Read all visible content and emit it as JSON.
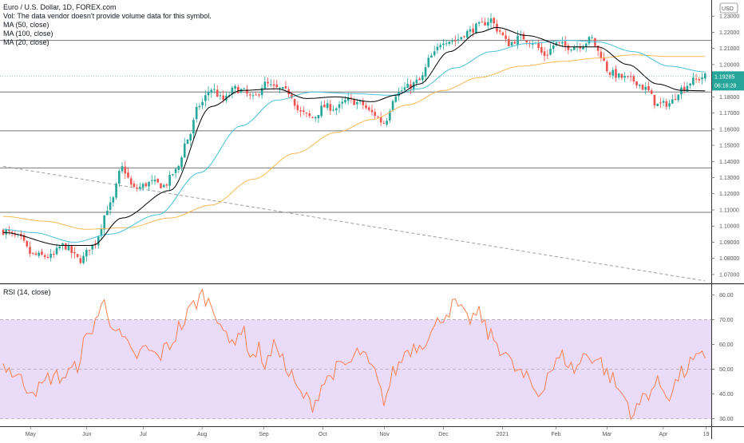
{
  "header": {
    "symbol_line": "Euro / U.S. Dollar, 1D, FOREX.com",
    "volume_note": "Vol: The data vendor doesn't provide volume data for this symbol.",
    "ma50": "MA (50, close)",
    "ma100": "MA (100, close)",
    "ma20": "MA (20, close)"
  },
  "rsi_legend": "RSI (14, close)",
  "currency": "USD",
  "last_price_label": "1.19285",
  "countdown_label": "06:16:28",
  "colors": {
    "up": "#26a69a",
    "down": "#ef5350",
    "ma20": "#000000",
    "ma50": "#4bc0d9",
    "ma100": "#f7b955",
    "rsi": "#ff7f50",
    "rsi_band": "#eadcf9",
    "rsi_bounds": "#9e9e9e",
    "hlines": "#777777",
    "trendline": "#9e9e9e",
    "price_tag": "#26a69a"
  },
  "chart_data": [
    {
      "type": "candlestick",
      "title": "Euro / U.S. Dollar, 1D, FOREX.com",
      "y_ticks": [
        "1.23000",
        "1.22000",
        "1.21000",
        "1.20000",
        "1.19000",
        "1.18000",
        "1.17000",
        "1.16000",
        "1.15000",
        "1.14000",
        "1.13000",
        "1.12000",
        "1.11000",
        "1.10000",
        "1.09000",
        "1.08000",
        "1.07000"
      ],
      "ylim": [
        1.065,
        1.24
      ],
      "x_labels": [
        "May",
        "Jun",
        "Jul",
        "Aug",
        "Sep",
        "Oct",
        "Nov",
        "Dec",
        "2021",
        "Feb",
        "Mar",
        "Apr",
        "19"
      ],
      "close_anchors": [
        [
          0,
          1.097
        ],
        [
          5,
          1.093
        ],
        [
          10,
          1.082
        ],
        [
          16,
          1.081
        ],
        [
          20,
          1.088
        ],
        [
          26,
          1.079
        ],
        [
          30,
          1.088
        ],
        [
          36,
          1.113
        ],
        [
          40,
          1.136
        ],
        [
          44,
          1.123
        ],
        [
          50,
          1.127
        ],
        [
          54,
          1.125
        ],
        [
          58,
          1.134
        ],
        [
          62,
          1.154
        ],
        [
          66,
          1.175
        ],
        [
          70,
          1.185
        ],
        [
          74,
          1.178
        ],
        [
          78,
          1.185
        ],
        [
          80,
          1.184
        ],
        [
          84,
          1.179
        ],
        [
          88,
          1.188
        ],
        [
          92,
          1.185
        ],
        [
          96,
          1.183
        ],
        [
          100,
          1.17
        ],
        [
          104,
          1.167
        ],
        [
          108,
          1.174
        ],
        [
          112,
          1.173
        ],
        [
          116,
          1.178
        ],
        [
          120,
          1.176
        ],
        [
          124,
          1.17
        ],
        [
          128,
          1.164
        ],
        [
          132,
          1.182
        ],
        [
          136,
          1.186
        ],
        [
          140,
          1.19
        ],
        [
          144,
          1.205
        ],
        [
          148,
          1.215
        ],
        [
          152,
          1.215
        ],
        [
          156,
          1.22
        ],
        [
          160,
          1.224
        ],
        [
          164,
          1.228
        ],
        [
          166,
          1.222
        ],
        [
          170,
          1.213
        ],
        [
          174,
          1.217
        ],
        [
          178,
          1.214
        ],
        [
          182,
          1.206
        ],
        [
          186,
          1.213
        ],
        [
          190,
          1.211
        ],
        [
          194,
          1.212
        ],
        [
          198,
          1.216
        ],
        [
          200,
          1.208
        ],
        [
          204,
          1.195
        ],
        [
          208,
          1.192
        ],
        [
          212,
          1.19
        ],
        [
          216,
          1.185
        ],
        [
          220,
          1.175
        ],
        [
          224,
          1.176
        ],
        [
          228,
          1.185
        ],
        [
          232,
          1.19
        ],
        [
          236,
          1.1928
        ]
      ],
      "ma_anchors": {
        "ma20": [
          [
            0,
            1.096
          ],
          [
            20,
            1.088
          ],
          [
            30,
            1.088
          ],
          [
            40,
            1.105
          ],
          [
            56,
            1.122
          ],
          [
            70,
            1.174
          ],
          [
            80,
            1.184
          ],
          [
            92,
            1.185
          ],
          [
            102,
            1.179
          ],
          [
            112,
            1.18
          ],
          [
            124,
            1.177
          ],
          [
            132,
            1.181
          ],
          [
            140,
            1.188
          ],
          [
            150,
            1.208
          ],
          [
            160,
            1.22
          ],
          [
            166,
            1.223
          ],
          [
            176,
            1.218
          ],
          [
            190,
            1.211
          ],
          [
            200,
            1.211
          ],
          [
            210,
            1.2
          ],
          [
            220,
            1.188
          ],
          [
            228,
            1.184
          ],
          [
            236,
            1.1838
          ]
        ],
        "ma50": [
          [
            0,
            1.098
          ],
          [
            10,
            1.096
          ],
          [
            24,
            1.09
          ],
          [
            36,
            1.095
          ],
          [
            52,
            1.107
          ],
          [
            66,
            1.133
          ],
          [
            80,
            1.162
          ],
          [
            92,
            1.178
          ],
          [
            104,
            1.183
          ],
          [
            118,
            1.182
          ],
          [
            130,
            1.181
          ],
          [
            140,
            1.185
          ],
          [
            152,
            1.198
          ],
          [
            164,
            1.208
          ],
          [
            176,
            1.213
          ],
          [
            190,
            1.215
          ],
          [
            200,
            1.214
          ],
          [
            212,
            1.208
          ],
          [
            224,
            1.199
          ],
          [
            236,
            1.1955
          ]
        ],
        "ma100": [
          [
            0,
            1.106
          ],
          [
            14,
            1.103
          ],
          [
            28,
            1.098
          ],
          [
            42,
            1.099
          ],
          [
            56,
            1.105
          ],
          [
            70,
            1.113
          ],
          [
            84,
            1.129
          ],
          [
            98,
            1.145
          ],
          [
            112,
            1.158
          ],
          [
            124,
            1.166
          ],
          [
            136,
            1.175
          ],
          [
            148,
            1.184
          ],
          [
            160,
            1.192
          ],
          [
            174,
            1.199
          ],
          [
            188,
            1.202
          ],
          [
            200,
            1.204
          ],
          [
            212,
            1.206
          ],
          [
            224,
            1.205
          ],
          [
            236,
            1.205
          ]
        ]
      },
      "horizontal_levels": [
        1.215,
        1.183,
        1.159,
        1.136,
        1.1085
      ],
      "trendline": [
        [
          1.137,
          0
        ],
        [
          1.066,
          236
        ]
      ],
      "last_price": 1.19285
    },
    {
      "type": "line",
      "title": "RSI (14, close)",
      "y_ticks": [
        "80.00",
        "70.00",
        "60.00",
        "50.00",
        "40.00",
        "30.00"
      ],
      "ylim": [
        27,
        84
      ],
      "band": [
        30,
        70
      ],
      "band_mid": 50,
      "rsi_anchors": [
        [
          0,
          52
        ],
        [
          4,
          48
        ],
        [
          8,
          43
        ],
        [
          12,
          42
        ],
        [
          16,
          47
        ],
        [
          20,
          47
        ],
        [
          24,
          50
        ],
        [
          28,
          62
        ],
        [
          32,
          72
        ],
        [
          34,
          77
        ],
        [
          36,
          70
        ],
        [
          40,
          62
        ],
        [
          44,
          55
        ],
        [
          48,
          58
        ],
        [
          52,
          55
        ],
        [
          56,
          60
        ],
        [
          60,
          68
        ],
        [
          64,
          76
        ],
        [
          67,
          80
        ],
        [
          70,
          76
        ],
        [
          72,
          72
        ],
        [
          76,
          60
        ],
        [
          80,
          66
        ],
        [
          84,
          55
        ],
        [
          86,
          58
        ],
        [
          88,
          52
        ],
        [
          92,
          60
        ],
        [
          96,
          48
        ],
        [
          100,
          40
        ],
        [
          104,
          36
        ],
        [
          108,
          45
        ],
        [
          112,
          50
        ],
        [
          116,
          52
        ],
        [
          120,
          57
        ],
        [
          124,
          50
        ],
        [
          128,
          38
        ],
        [
          132,
          50
        ],
        [
          136,
          58
        ],
        [
          140,
          60
        ],
        [
          144,
          65
        ],
        [
          148,
          72
        ],
        [
          152,
          76
        ],
        [
          156,
          70
        ],
        [
          160,
          72
        ],
        [
          164,
          63
        ],
        [
          168,
          58
        ],
        [
          172,
          50
        ],
        [
          176,
          46
        ],
        [
          180,
          40
        ],
        [
          184,
          50
        ],
        [
          188,
          55
        ],
        [
          192,
          50
        ],
        [
          196,
          56
        ],
        [
          200,
          54
        ],
        [
          204,
          47
        ],
        [
          208,
          40
        ],
        [
          212,
          32
        ],
        [
          216,
          40
        ],
        [
          220,
          44
        ],
        [
          224,
          40
        ],
        [
          228,
          48
        ],
        [
          232,
          53
        ],
        [
          236,
          55
        ]
      ]
    }
  ]
}
